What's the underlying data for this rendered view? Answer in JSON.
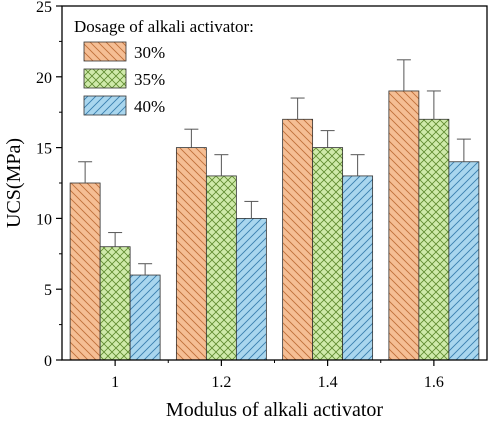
{
  "chart_data": {
    "type": "bar",
    "xlabel": "Modulus of alkali activator",
    "ylabel": "UCS(MPa)",
    "categories": [
      "1",
      "1.2",
      "1.4",
      "1.6"
    ],
    "ylim": [
      0,
      25
    ],
    "yticks": [
      0,
      5,
      10,
      15,
      20,
      25
    ],
    "legend_title": "Dosage of alkali activator:",
    "legend_position": "top-left",
    "grid": false,
    "series": [
      {
        "name": "30%",
        "values": [
          12.5,
          15,
          17,
          19
        ],
        "errors": [
          1.5,
          1.3,
          1.5,
          2.2
        ],
        "color": "#F5BE94",
        "pattern": "diagonal-back"
      },
      {
        "name": "35%",
        "values": [
          8,
          13,
          15,
          17
        ],
        "errors": [
          1.0,
          1.5,
          1.2,
          2.0
        ],
        "color": "#CFEAAA",
        "pattern": "crosshatch"
      },
      {
        "name": "40%",
        "values": [
          6,
          10,
          13,
          14
        ],
        "errors": [
          0.8,
          1.2,
          1.5,
          1.6
        ],
        "color": "#A9D6EE",
        "pattern": "diagonal-forward"
      }
    ]
  }
}
